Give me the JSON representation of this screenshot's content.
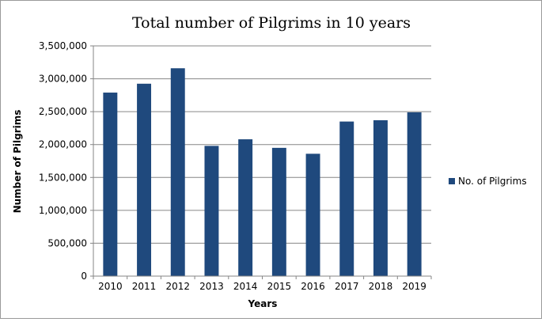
{
  "chart_data": {
    "type": "bar",
    "title": "Total number of Pilgrims in 10 years",
    "xlabel": "Years",
    "ylabel": "Number of Pilgrims",
    "categories": [
      "2010",
      "2011",
      "2012",
      "2013",
      "2014",
      "2015",
      "2016",
      "2017",
      "2018",
      "2019"
    ],
    "series": [
      {
        "name": "No. of Pilgrims",
        "color": "#1f497d",
        "values": [
          2790000,
          2925000,
          3160000,
          1980000,
          2080000,
          1950000,
          1860000,
          2350000,
          2370000,
          2490000
        ]
      }
    ],
    "ylim": [
      0,
      3500000
    ],
    "yticks": [
      "0",
      "500,000",
      "1,000,000",
      "1,500,000",
      "2,000,000",
      "2,500,000",
      "3,000,000",
      "3,500,000"
    ],
    "grid": true,
    "legend_position": "right"
  }
}
